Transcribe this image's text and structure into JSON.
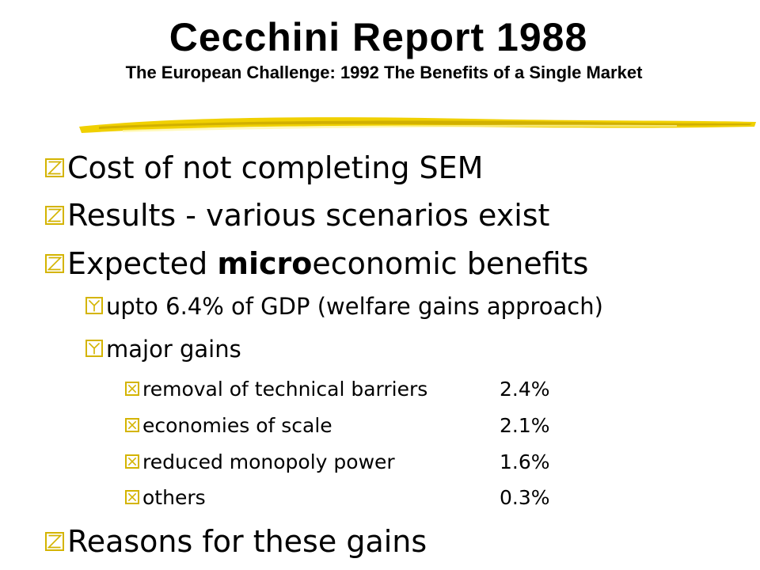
{
  "slide": {
    "title": "Cecchini Report 1988",
    "subtitle": "The European Challenge: 1992 The Benefits of a Single Market",
    "accent_color": "#e8c400",
    "bullets": {
      "b1": "Cost of not completing SEM",
      "b2": "Results - various scenarios exist",
      "b3_prefix": "Expected ",
      "b3_bold": "micro",
      "b3_suffix": "economic benefits",
      "sub1": "upto 6.4% of GDP (welfare gains approach)",
      "sub2": "major gains",
      "b4": "Reasons for these gains"
    },
    "gains": [
      {
        "label": "removal of technical barriers",
        "value": "2.4%"
      },
      {
        "label": "economies of scale",
        "value": "2.1%"
      },
      {
        "label": "reduced monopoly power",
        "value": "1.6%"
      },
      {
        "label": "others",
        "value": "0.3%"
      }
    ]
  }
}
